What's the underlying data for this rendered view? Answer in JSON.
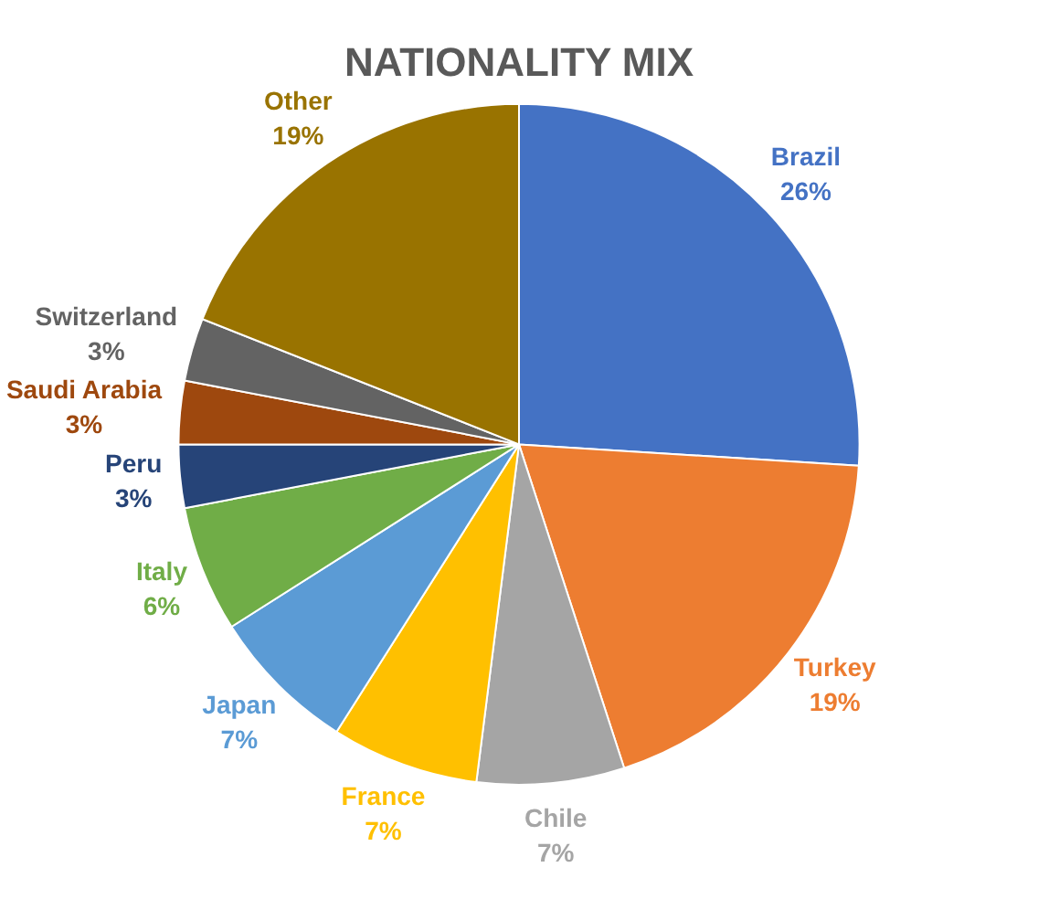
{
  "chart_data": {
    "type": "pie",
    "title": "NATIONALITY MIX",
    "categories": [
      "Brazil",
      "Turkey",
      "Chile",
      "France",
      "Japan",
      "Italy",
      "Peru",
      "Saudi Arabia",
      "Switzerland",
      "Other"
    ],
    "values": [
      26,
      19,
      7,
      7,
      7,
      6,
      3,
      3,
      3,
      19
    ],
    "value_labels": [
      "26%",
      "19%",
      "7%",
      "7%",
      "7%",
      "6%",
      "3%",
      "3%",
      "3%",
      "19%"
    ],
    "colors": [
      "#4472c4",
      "#ed7d31",
      "#a5a5a5",
      "#ffc000",
      "#5b9bd5",
      "#70ad47",
      "#264478",
      "#9e480e",
      "#636363",
      "#997300"
    ],
    "legend": false
  }
}
